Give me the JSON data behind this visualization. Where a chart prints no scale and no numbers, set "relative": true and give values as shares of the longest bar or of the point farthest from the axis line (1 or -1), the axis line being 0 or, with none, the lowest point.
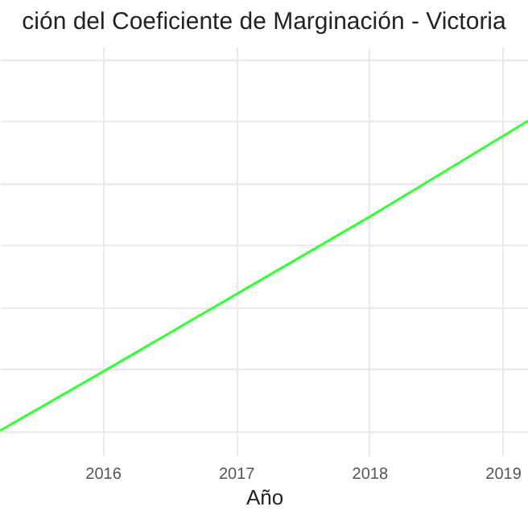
{
  "chart_data": {
    "type": "line",
    "title": "ción del Coeficiente de Marginación - Victoria",
    "xlabel": "Año",
    "x": [
      2015.23,
      2016,
      2017,
      2018,
      2019.19
    ],
    "series": [
      {
        "color": "#33ff33",
        "values": [
          0,
          0.19,
          0.44,
          0.69,
          1
        ]
      }
    ],
    "relative": true,
    "xlim": [
      2015.23,
      2019.19
    ],
    "xticks": [
      2016,
      2017,
      2018,
      2019
    ],
    "grid": true
  }
}
